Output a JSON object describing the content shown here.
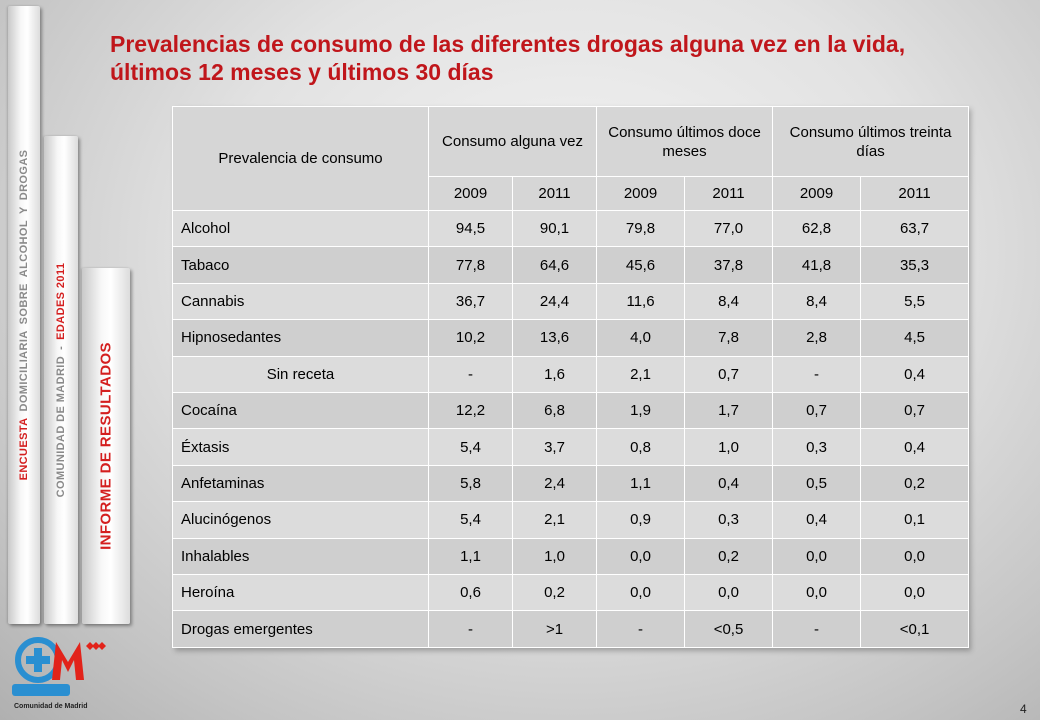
{
  "sidebar": {
    "tab1": {
      "word1": "ENCUESTA",
      "word2": "DOMICILIARIA",
      "word3": "SOBRE",
      "word4": "ALCOHOL",
      "word5": "Y",
      "word6": "DROGAS"
    },
    "tab2": {
      "part1": "COMUNIDAD DE MADRID",
      "sep": "-",
      "part2": "EDADES 2011"
    },
    "tab3": {
      "label": "INFORME DE RESULTADOS"
    }
  },
  "title": "Prevalencias de consumo de las diferentes drogas alguna vez en la vida, últimos 12 meses y últimos 30 días",
  "table": {
    "corner_header": "Prevalencia de consumo",
    "groups": [
      "Consumo alguna vez",
      "Consumo últimos doce meses",
      "Consumo últimos treinta días"
    ],
    "years": [
      "2009",
      "2011",
      "2009",
      "2011",
      "2009",
      "2011"
    ],
    "rows": [
      {
        "label": "Alcohol",
        "values": [
          "94,5",
          "90,1",
          "79,8",
          "77,0",
          "62,8",
          "63,7"
        ]
      },
      {
        "label": "Tabaco",
        "values": [
          "77,8",
          "64,6",
          "45,6",
          "37,8",
          "41,8",
          "35,3"
        ]
      },
      {
        "label": "Cannabis",
        "values": [
          "36,7",
          "24,4",
          "11,6",
          "8,4",
          "8,4",
          "5,5"
        ]
      },
      {
        "label": "Hipnosedantes",
        "values": [
          "10,2",
          "13,6",
          "4,0",
          "7,8",
          "2,8",
          "4,5"
        ]
      },
      {
        "label": "Sin receta",
        "values": [
          "-",
          "1,6",
          "2,1",
          "0,7",
          "-",
          "0,4"
        ]
      },
      {
        "label": "Cocaína",
        "values": [
          "12,2",
          "6,8",
          "1,9",
          "1,7",
          "0,7",
          "0,7"
        ]
      },
      {
        "label": "Éxtasis",
        "values": [
          "5,4",
          "3,7",
          "0,8",
          "1,0",
          "0,3",
          "0,4"
        ]
      },
      {
        "label": "Anfetaminas",
        "values": [
          "5,8",
          "2,4",
          "1,1",
          "0,4",
          "0,5",
          "0,2"
        ]
      },
      {
        "label": "Alucinógenos",
        "values": [
          "5,4",
          "2,1",
          "0,9",
          "0,3",
          "0,4",
          "0,1"
        ]
      },
      {
        "label": "Inhalables",
        "values": [
          "1,1",
          "1,0",
          "0,0",
          "0,2",
          "0,0",
          "0,0"
        ]
      },
      {
        "label": "Heroína",
        "values": [
          "0,6",
          "0,2",
          "0,0",
          "0,0",
          "0,0",
          "0,0"
        ]
      },
      {
        "label": "Drogas emergentes",
        "values": [
          "-",
          ">1",
          "-",
          "<0,5",
          "-",
          "<0,1"
        ]
      }
    ]
  },
  "logo": {
    "brand": "SaludMadrid",
    "caption": "Comunidad de Madrid",
    "icon": "salud-madrid-logo"
  },
  "page_number": "4",
  "colors": {
    "accent_red": "#c0161b",
    "row_light": "#dcdcdc",
    "row_mid": "#cfcfcf",
    "header_fill": "#d6d6d6",
    "logo_blue": "#2a8fd1",
    "logo_red": "#e2231a"
  }
}
